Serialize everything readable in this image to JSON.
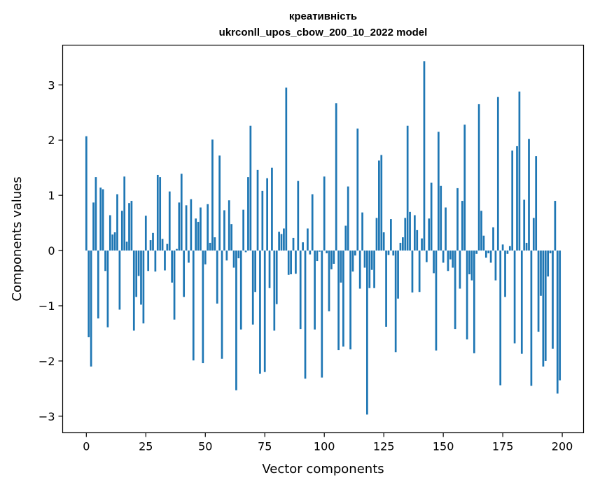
{
  "chart_data": {
    "type": "bar",
    "title_line1": "креативність",
    "title_line2": "ukrconll_upos_cbow_200_10_2022 model",
    "xlabel": "Vector components",
    "ylabel": "Components values",
    "xlim": [
      -9.95,
      208.95
    ],
    "ylim": [
      -3.3,
      3.72
    ],
    "xticks": [
      0,
      25,
      50,
      75,
      100,
      125,
      150,
      175,
      200
    ],
    "yticks": [
      -3,
      -2,
      -1,
      0,
      1,
      2,
      3
    ],
    "ytick_labels": [
      "−3",
      "−2",
      "−1",
      "0",
      "1",
      "2",
      "3"
    ],
    "bar_color": "#1f77b4",
    "values": [
      2.07,
      -1.57,
      -2.1,
      0.87,
      1.33,
      -1.23,
      1.14,
      1.11,
      -0.37,
      -1.39,
      0.64,
      0.29,
      0.33,
      1.02,
      -1.07,
      0.72,
      1.34,
      0.16,
      0.86,
      0.9,
      -1.45,
      -0.84,
      -0.46,
      -0.98,
      -1.32,
      0.63,
      -0.37,
      0.19,
      0.32,
      -0.38,
      1.37,
      1.33,
      0.21,
      -0.36,
      0.12,
      1.07,
      -0.58,
      -1.25,
      0.03,
      0.87,
      1.39,
      -0.84,
      0.82,
      -0.22,
      0.93,
      -1.99,
      0.58,
      0.52,
      0.78,
      -2.04,
      -0.25,
      0.84,
      0.14,
      2.01,
      0.24,
      -0.96,
      1.72,
      -1.96,
      0.73,
      -0.18,
      0.91,
      0.48,
      -0.31,
      -2.53,
      -0.14,
      -1.43,
      0.74,
      -0.03,
      1.33,
      2.26,
      -1.34,
      -0.75,
      1.46,
      -2.23,
      1.08,
      -2.2,
      1.31,
      -0.68,
      1.5,
      -1.45,
      -0.97,
      0.34,
      0.3,
      0.4,
      2.95,
      -0.44,
      -0.43,
      0.23,
      -0.42,
      1.26,
      -1.42,
      0.15,
      -2.32,
      0.4,
      -0.07,
      1.02,
      -1.43,
      -0.19,
      -0.02,
      -2.3,
      1.34,
      -0.05,
      -1.1,
      -0.34,
      -0.24,
      2.67,
      -1.8,
      -0.58,
      -1.74,
      0.45,
      1.16,
      -1.79,
      -0.38,
      -0.09,
      2.21,
      -0.69,
      0.69,
      -0.31,
      -2.97,
      -0.68,
      -0.35,
      -0.68,
      0.59,
      1.63,
      1.73,
      0.33,
      -1.38,
      -0.08,
      0.57,
      -0.09,
      -1.84,
      -0.87,
      0.14,
      0.24,
      0.59,
      2.26,
      0.7,
      -0.76,
      0.64,
      0.37,
      -0.75,
      0.22,
      3.43,
      -0.21,
      0.58,
      1.23,
      -0.41,
      -1.81,
      2.15,
      1.17,
      -0.22,
      0.78,
      -0.37,
      -0.16,
      -0.31,
      -1.42,
      1.13,
      -0.69,
      0.9,
      2.28,
      -1.61,
      -0.43,
      -0.54,
      -1.86,
      -0.06,
      2.65,
      0.72,
      0.27,
      -0.13,
      -0.05,
      -0.22,
      0.42,
      -0.54,
      2.78,
      -2.44,
      0.11,
      -0.84,
      -0.06,
      0.08,
      1.81,
      -1.68,
      1.89,
      2.88,
      -1.87,
      0.92,
      0.14,
      2.02,
      -2.45,
      0.59,
      1.71,
      -1.47,
      -0.82,
      -2.1,
      -2.0,
      -0.47,
      -0.05,
      -1.78,
      0.9,
      -2.59,
      -2.35
    ]
  }
}
